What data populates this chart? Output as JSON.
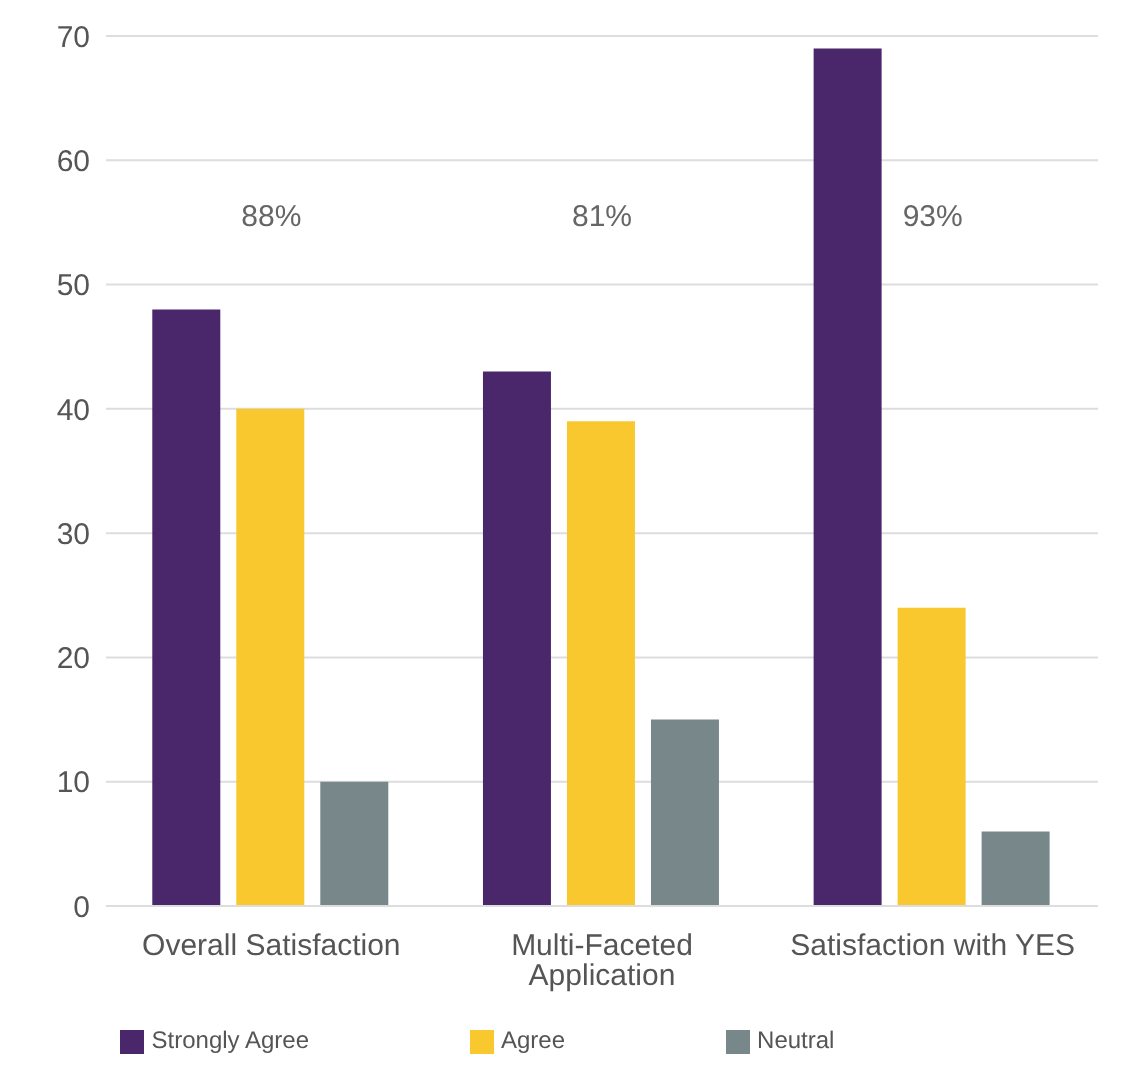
{
  "chart_data": {
    "type": "bar",
    "categories": [
      "Overall Satisfaction",
      "Multi-Faceted Application",
      "Satisfaction with YES"
    ],
    "series": [
      {
        "name": "Strongly Agree",
        "color": "#4a266b",
        "values": [
          48,
          43,
          69
        ]
      },
      {
        "name": "Agree",
        "color": "#f9c82f",
        "values": [
          40,
          39,
          24
        ]
      },
      {
        "name": "Neutral",
        "color": "#78878a",
        "values": [
          10,
          15,
          6
        ]
      }
    ],
    "ylim": [
      0,
      70
    ],
    "yticks": [
      0,
      10,
      20,
      30,
      40,
      50,
      60,
      70
    ],
    "grid": "y",
    "legend": "bottom",
    "annotations": [
      "88%",
      "81%",
      "93%"
    ]
  }
}
